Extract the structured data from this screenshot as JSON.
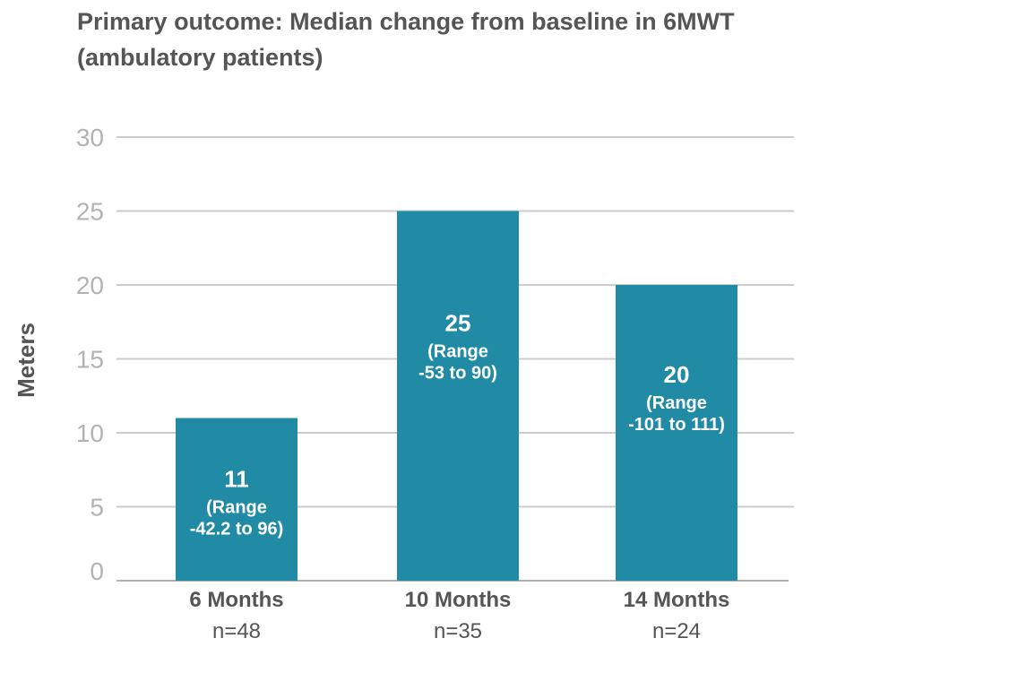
{
  "chart_data": {
    "type": "bar",
    "title_lines": [
      "Primary outcome: Median change from baseline in 6MWT",
      "(ambulatory patients)"
    ],
    "ylabel": "Meters",
    "xlabel": "",
    "ylim": [
      0,
      30
    ],
    "yticks": [
      0,
      5,
      10,
      15,
      20,
      25,
      30
    ],
    "grid": true,
    "categories": [
      "6 Months",
      "10 Months",
      "14 Months"
    ],
    "n_labels": [
      "n=48",
      "n=35",
      "n=24"
    ],
    "values": [
      11,
      25,
      20
    ],
    "value_labels": [
      "11",
      "25",
      "20"
    ],
    "range_labels": [
      [
        "(Range",
        "-42.2 to 96)"
      ],
      [
        "(Range",
        "-53 to 90)"
      ],
      [
        "(Range",
        "-101 to 111)"
      ]
    ],
    "colors": {
      "bar": "#218ba6",
      "grid": "#cccccc",
      "text": "#555555",
      "tick": "#b3b3b3"
    }
  }
}
